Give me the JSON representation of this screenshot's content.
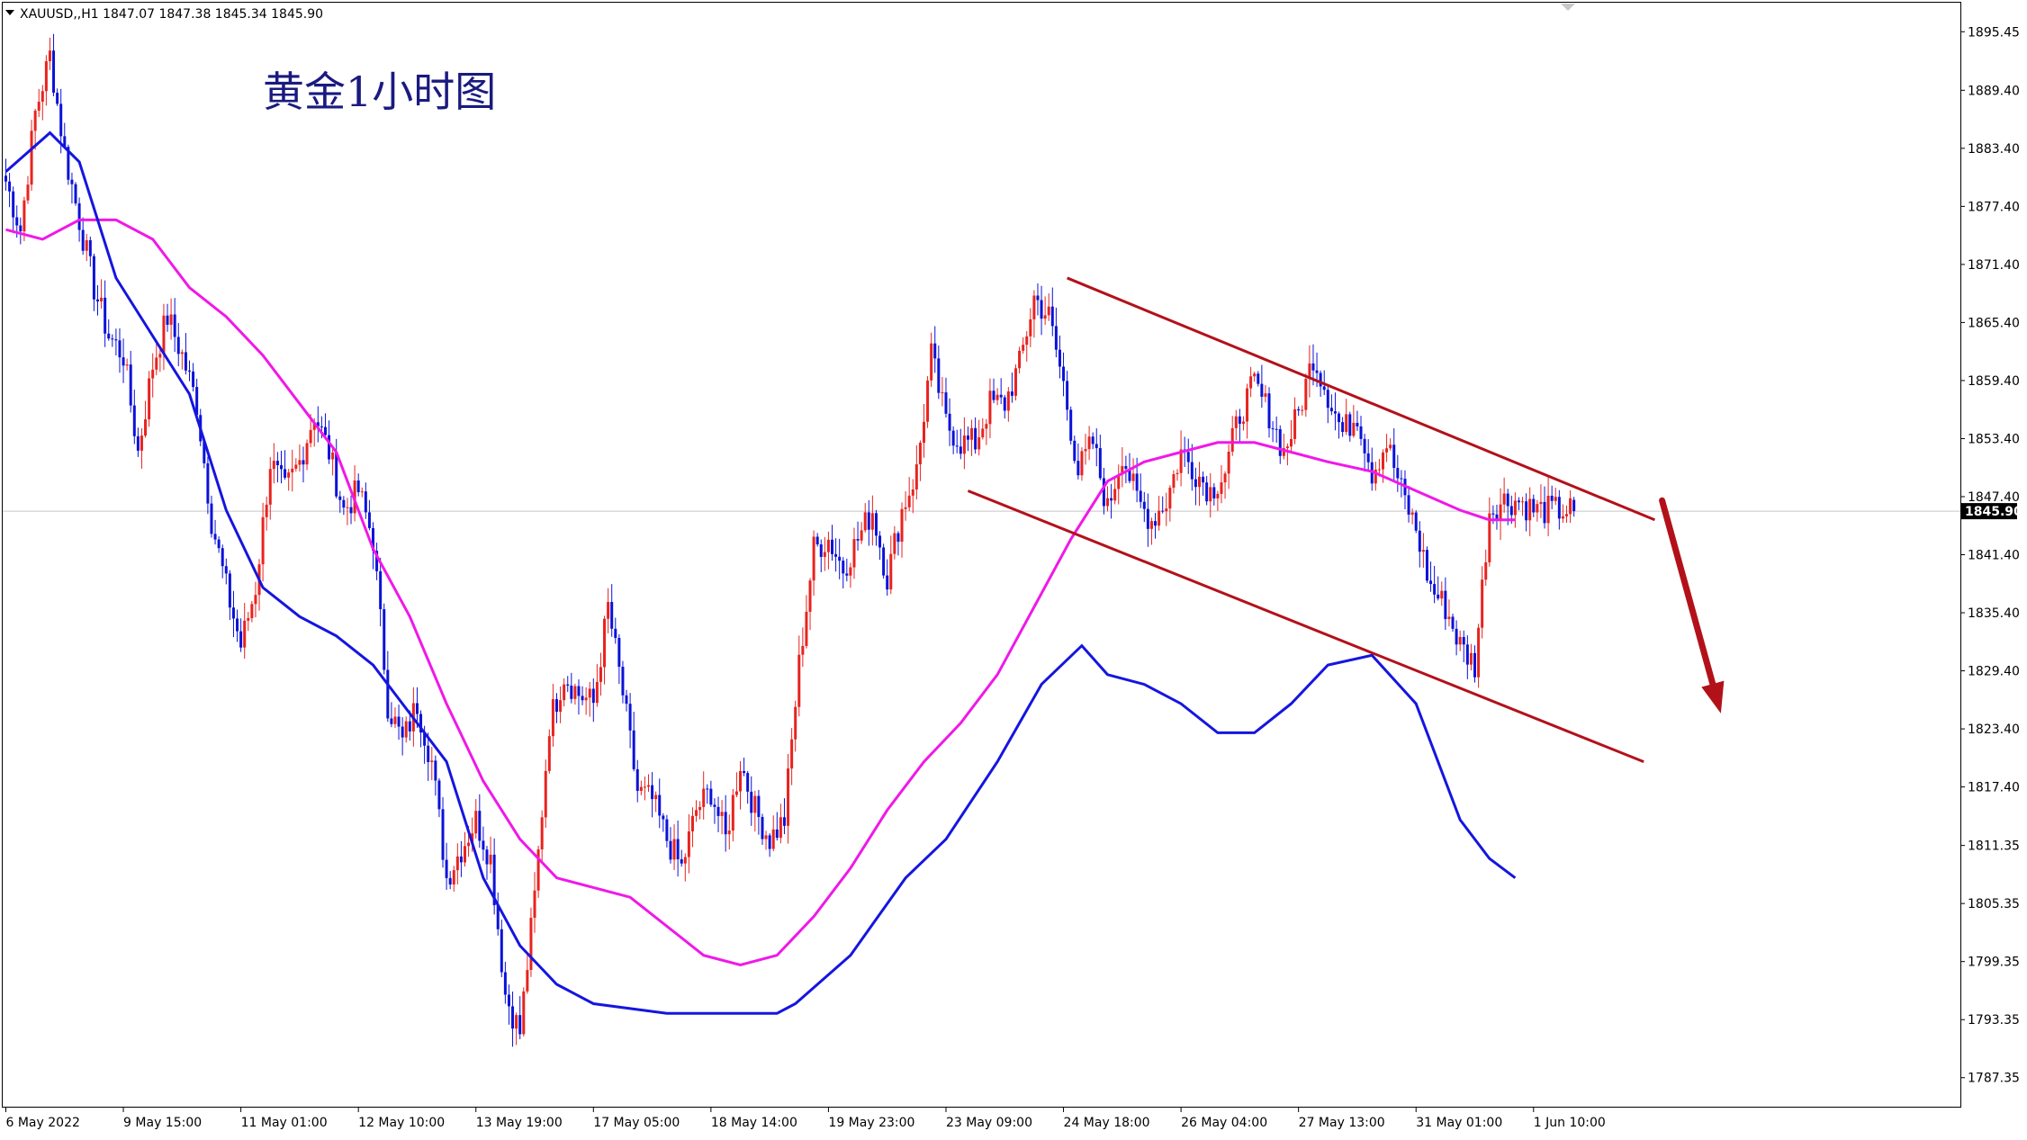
{
  "symbol_header": "XAUUSD,,H1  1847.07 1847.38 1845.34 1845.90",
  "chart_data": {
    "type": "candlestick",
    "title": "黄金1小时图",
    "symbol": "XAUUSD",
    "timeframe": "H1",
    "ohlc_header": {
      "open": 1847.07,
      "high": 1847.38,
      "low": 1845.34,
      "close": 1845.9
    },
    "current_price": "1845.90",
    "ylim": [
      1784.35,
      1898.45
    ],
    "y_ticks": [
      "1895.45",
      "1889.40",
      "1883.40",
      "1877.40",
      "1871.40",
      "1865.40",
      "1859.40",
      "1853.40",
      "1847.40",
      "1841.40",
      "1835.40",
      "1829.40",
      "1823.40",
      "1817.40",
      "1811.35",
      "1805.35",
      "1799.35",
      "1793.35",
      "1787.35"
    ],
    "x_ticks": [
      "6 May 2022",
      "9 May 15:00",
      "11 May 01:00",
      "12 May 10:00",
      "13 May 19:00",
      "17 May 05:00",
      "18 May 14:00",
      "19 May 23:00",
      "23 May 09:00",
      "24 May 18:00",
      "26 May 04:00",
      "27 May 13:00",
      "31 May 01:00",
      "1 Jun 10:00"
    ],
    "x_tick_bar_index": [
      0,
      32,
      64,
      96,
      128,
      160,
      192,
      224,
      256,
      288,
      320,
      352,
      384,
      416
    ],
    "bar_count": 428,
    "grid": false,
    "colors": {
      "up": "#e8231f",
      "down": "#0a12d8",
      "ma_fast": "#1515e0",
      "ma_slow": "#f018e8",
      "channel": "#b3111a",
      "arrow": "#b3111a",
      "price_line": "#c8c8c8"
    },
    "close_path": [
      [
        0,
        1880
      ],
      [
        4,
        1875
      ],
      [
        8,
        1887
      ],
      [
        12,
        1893
      ],
      [
        16,
        1883
      ],
      [
        20,
        1876
      ],
      [
        24,
        1869
      ],
      [
        28,
        1864
      ],
      [
        32,
        1862
      ],
      [
        36,
        1852
      ],
      [
        40,
        1861
      ],
      [
        44,
        1866
      ],
      [
        48,
        1862
      ],
      [
        52,
        1857
      ],
      [
        56,
        1845
      ],
      [
        60,
        1838
      ],
      [
        64,
        1832
      ],
      [
        68,
        1838
      ],
      [
        72,
        1851
      ],
      [
        76,
        1848
      ],
      [
        80,
        1851
      ],
      [
        84,
        1856
      ],
      [
        88,
        1852
      ],
      [
        92,
        1846
      ],
      [
        96,
        1848
      ],
      [
        100,
        1843
      ],
      [
        104,
        1826
      ],
      [
        108,
        1822
      ],
      [
        112,
        1826
      ],
      [
        116,
        1820
      ],
      [
        120,
        1808
      ],
      [
        124,
        1811
      ],
      [
        128,
        1814
      ],
      [
        132,
        1810
      ],
      [
        136,
        1796
      ],
      [
        140,
        1792
      ],
      [
        144,
        1806
      ],
      [
        148,
        1824
      ],
      [
        152,
        1829
      ],
      [
        156,
        1827
      ],
      [
        160,
        1826
      ],
      [
        164,
        1836
      ],
      [
        168,
        1827
      ],
      [
        172,
        1817
      ],
      [
        176,
        1816
      ],
      [
        180,
        1812
      ],
      [
        184,
        1809
      ],
      [
        188,
        1815
      ],
      [
        192,
        1817
      ],
      [
        196,
        1812
      ],
      [
        200,
        1820
      ],
      [
        204,
        1815
      ],
      [
        208,
        1812
      ],
      [
        212,
        1814
      ],
      [
        216,
        1830
      ],
      [
        220,
        1842
      ],
      [
        224,
        1843
      ],
      [
        228,
        1840
      ],
      [
        232,
        1843
      ],
      [
        236,
        1846
      ],
      [
        240,
        1839
      ],
      [
        244,
        1846
      ],
      [
        248,
        1850
      ],
      [
        252,
        1862
      ],
      [
        256,
        1855
      ],
      [
        260,
        1853
      ],
      [
        264,
        1853
      ],
      [
        268,
        1857
      ],
      [
        272,
        1857
      ],
      [
        276,
        1861
      ],
      [
        280,
        1868
      ],
      [
        284,
        1866
      ],
      [
        288,
        1859
      ],
      [
        292,
        1850
      ],
      [
        296,
        1853
      ],
      [
        300,
        1846
      ],
      [
        304,
        1852
      ],
      [
        308,
        1847
      ],
      [
        312,
        1845
      ],
      [
        316,
        1847
      ],
      [
        320,
        1852
      ],
      [
        324,
        1850
      ],
      [
        328,
        1848
      ],
      [
        332,
        1850
      ],
      [
        336,
        1856
      ],
      [
        340,
        1859
      ],
      [
        344,
        1856
      ],
      [
        348,
        1852
      ],
      [
        352,
        1856
      ],
      [
        356,
        1862
      ],
      [
        360,
        1858
      ],
      [
        364,
        1854
      ],
      [
        368,
        1856
      ],
      [
        372,
        1850
      ],
      [
        376,
        1853
      ],
      [
        380,
        1848
      ],
      [
        384,
        1844
      ],
      [
        388,
        1838
      ],
      [
        392,
        1836
      ],
      [
        396,
        1832
      ],
      [
        400,
        1830
      ],
      [
        404,
        1846
      ],
      [
        408,
        1847
      ],
      [
        412,
        1847
      ],
      [
        416,
        1846
      ],
      [
        420,
        1846
      ],
      [
        424,
        1846
      ],
      [
        427,
        1845.9
      ]
    ],
    "ma_fast_path": [
      [
        0,
        1881
      ],
      [
        12,
        1885
      ],
      [
        20,
        1882
      ],
      [
        30,
        1870
      ],
      [
        40,
        1864
      ],
      [
        50,
        1858
      ],
      [
        60,
        1846
      ],
      [
        70,
        1838
      ],
      [
        80,
        1835
      ],
      [
        90,
        1833
      ],
      [
        100,
        1830
      ],
      [
        110,
        1825
      ],
      [
        120,
        1820
      ],
      [
        130,
        1808
      ],
      [
        140,
        1801
      ],
      [
        150,
        1797
      ],
      [
        160,
        1795
      ],
      [
        180,
        1794
      ],
      [
        200,
        1794
      ],
      [
        210,
        1794
      ],
      [
        215,
        1795
      ],
      [
        230,
        1800
      ],
      [
        245,
        1808
      ],
      [
        256,
        1812
      ],
      [
        270,
        1820
      ],
      [
        282,
        1828
      ],
      [
        293,
        1832
      ],
      [
        300,
        1829
      ],
      [
        310,
        1828
      ],
      [
        320,
        1826
      ],
      [
        330,
        1823
      ],
      [
        340,
        1823
      ],
      [
        350,
        1826
      ],
      [
        360,
        1830
      ],
      [
        372,
        1831
      ],
      [
        384,
        1826
      ],
      [
        396,
        1814
      ],
      [
        404,
        1810
      ],
      [
        411,
        1808
      ]
    ],
    "ma_slow_path": [
      [
        0,
        1875
      ],
      [
        10,
        1874
      ],
      [
        20,
        1876
      ],
      [
        30,
        1876
      ],
      [
        40,
        1874
      ],
      [
        50,
        1869
      ],
      [
        60,
        1866
      ],
      [
        70,
        1862
      ],
      [
        80,
        1857
      ],
      [
        90,
        1852
      ],
      [
        100,
        1842
      ],
      [
        110,
        1835
      ],
      [
        120,
        1826
      ],
      [
        130,
        1818
      ],
      [
        140,
        1812
      ],
      [
        150,
        1808
      ],
      [
        160,
        1807
      ],
      [
        170,
        1806
      ],
      [
        180,
        1803
      ],
      [
        190,
        1800
      ],
      [
        200,
        1799
      ],
      [
        210,
        1800
      ],
      [
        220,
        1804
      ],
      [
        230,
        1809
      ],
      [
        240,
        1815
      ],
      [
        250,
        1820
      ],
      [
        260,
        1824
      ],
      [
        270,
        1829
      ],
      [
        280,
        1836
      ],
      [
        290,
        1843
      ],
      [
        300,
        1849
      ],
      [
        310,
        1851
      ],
      [
        320,
        1852
      ],
      [
        330,
        1853
      ],
      [
        340,
        1853
      ],
      [
        350,
        1852
      ],
      [
        360,
        1851
      ],
      [
        372,
        1850
      ],
      [
        384,
        1848
      ],
      [
        396,
        1846
      ],
      [
        404,
        1845
      ],
      [
        411,
        1845
      ]
    ],
    "trend_channel": {
      "upper": [
        [
          289,
          1870
        ],
        [
          449,
          1845
        ]
      ],
      "lower": [
        [
          262,
          1848
        ],
        [
          446,
          1820
        ]
      ]
    },
    "forecast_arrow": {
      "from": [
        451,
        1847
      ],
      "to": [
        467,
        1825
      ]
    }
  }
}
